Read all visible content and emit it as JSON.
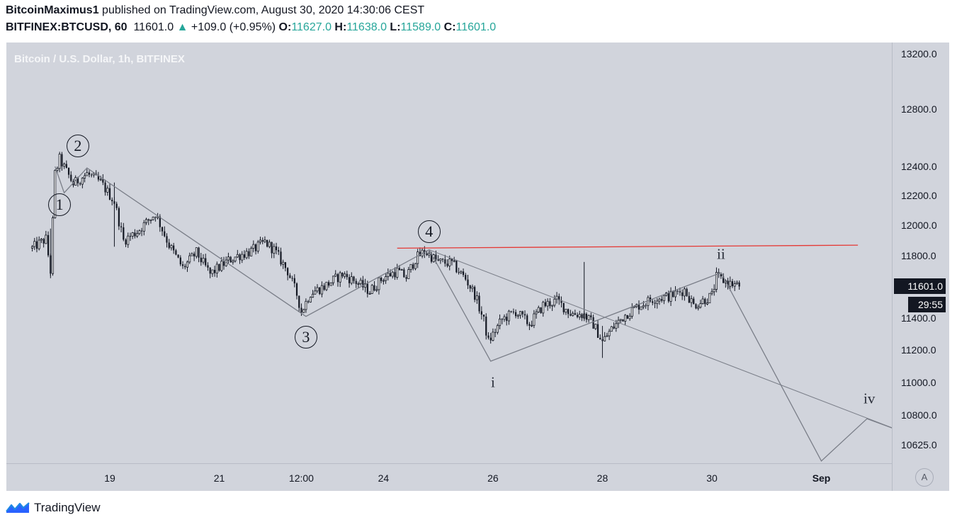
{
  "header": {
    "author": "BitcoinMaximus1",
    "published": "published on TradingView.com, August 30, 2020 14:30:06 CEST",
    "symbol": "BITFINEX:BTCUSD, 60",
    "last": "11601.0",
    "arrow": "▲",
    "change": "+109.0 (+0.95%)",
    "o_label": "O:",
    "o": "11627.0",
    "h_label": "H:",
    "h": "11638.0",
    "l_label": "L:",
    "l": "11589.0",
    "c_label": "C:",
    "c": "11601.0"
  },
  "price_tag": "11601.0",
  "countdown": "29:55",
  "auto_label": "A",
  "footer": {
    "brand": "TradingView",
    "logo_icon": "tradingview-logo-icon"
  },
  "colors": {
    "background": "#d1d4dc",
    "candle": "#131722",
    "resistance": "#e53935",
    "wave_line": "#7a7e88",
    "green": "#26a69a"
  },
  "labels": {
    "wave1": "1",
    "wave2": "2",
    "wave3": "3",
    "wave4": "4",
    "sub_i": "i",
    "sub_ii": "ii",
    "sub_iv": "iv"
  },
  "chart_data": {
    "type": "candlestick",
    "title": "Bitcoin / U.S. Dollar, 1h, BITFINEX",
    "interval": "1h",
    "x_tick_labels": [
      "19",
      "21",
      "12:00",
      "24",
      "26",
      "28",
      "30",
      "Sep"
    ],
    "y_tick_labels": [
      "13200.0",
      "12800.0",
      "12400.0",
      "12200.0",
      "12000.0",
      "11800.0",
      "11400.0",
      "11200.0",
      "11000.0",
      "10800.0",
      "10625.0"
    ],
    "y_scale": "log",
    "ylim": [
      10530,
      13300
    ],
    "grid": false,
    "last_price": 11601.0,
    "price_path": [
      {
        "t": "Aug 17 14:00",
        "v": 11850
      },
      {
        "t": "Aug 17 20:00",
        "v": 11910
      },
      {
        "t": "Aug 17 22:00",
        "v": 11700
      },
      {
        "t": "Aug 18 00:00",
        "v": 12350
      },
      {
        "t": "Aug 18 02:00",
        "v": 12450
      },
      {
        "t": "Aug 18 08:00",
        "v": 12280
      },
      {
        "t": "Aug 18 14:00",
        "v": 12350
      },
      {
        "t": "Aug 18 20:00",
        "v": 12290
      },
      {
        "t": "Aug 19 02:00",
        "v": 12160
      },
      {
        "t": "Aug 19 06:00",
        "v": 11900
      },
      {
        "t": "Aug 19 12:00",
        "v": 11960
      },
      {
        "t": "Aug 19 20:00",
        "v": 12080
      },
      {
        "t": "Aug 20 02:00",
        "v": 11870
      },
      {
        "t": "Aug 20 08:00",
        "v": 11720
      },
      {
        "t": "Aug 20 14:00",
        "v": 11820
      },
      {
        "t": "Aug 20 20:00",
        "v": 11680
      },
      {
        "t": "Aug 21 04:00",
        "v": 11770
      },
      {
        "t": "Aug 21 08:00",
        "v": 11800
      },
      {
        "t": "Aug 21 14:00",
        "v": 11830
      },
      {
        "t": "Aug 21 20:00",
        "v": 11890
      },
      {
        "t": "Aug 22 00:00",
        "v": 11840
      },
      {
        "t": "Aug 22 06:00",
        "v": 11700
      },
      {
        "t": "Aug 22 10:00",
        "v": 11550
      },
      {
        "t": "Aug 22 12:00",
        "v": 11440
      },
      {
        "t": "Aug 22 16:00",
        "v": 11560
      },
      {
        "t": "Aug 22 22:00",
        "v": 11600
      },
      {
        "t": "Aug 23 06:00",
        "v": 11680
      },
      {
        "t": "Aug 23 12:00",
        "v": 11630
      },
      {
        "t": "Aug 23 18:00",
        "v": 11570
      },
      {
        "t": "Aug 24 00:00",
        "v": 11660
      },
      {
        "t": "Aug 24 06:00",
        "v": 11700
      },
      {
        "t": "Aug 24 10:00",
        "v": 11660
      },
      {
        "t": "Aug 24 14:00",
        "v": 11780
      },
      {
        "t": "Aug 24 18:00",
        "v": 11830
      },
      {
        "t": "Aug 25 00:00",
        "v": 11760
      },
      {
        "t": "Aug 25 06:00",
        "v": 11750
      },
      {
        "t": "Aug 25 12:00",
        "v": 11650
      },
      {
        "t": "Aug 25 16:00",
        "v": 11550
      },
      {
        "t": "Aug 25 20:00",
        "v": 11380
      },
      {
        "t": "Aug 25 22:00",
        "v": 11250
      },
      {
        "t": "Aug 26 04:00",
        "v": 11390
      },
      {
        "t": "Aug 26 10:00",
        "v": 11440
      },
      {
        "t": "Aug 26 16:00",
        "v": 11360
      },
      {
        "t": "Aug 26 22:00",
        "v": 11480
      },
      {
        "t": "Aug 27 04:00",
        "v": 11510
      },
      {
        "t": "Aug 27 10:00",
        "v": 11430
      },
      {
        "t": "Aug 27 16:00",
        "v": 11420
      },
      {
        "t": "Aug 27 20:00",
        "v": 11360
      },
      {
        "t": "Aug 28 00:00",
        "v": 11250
      },
      {
        "t": "Aug 28 04:00",
        "v": 11330
      },
      {
        "t": "Aug 28 10:00",
        "v": 11420
      },
      {
        "t": "Aug 28 16:00",
        "v": 11480
      },
      {
        "t": "Aug 28 22:00",
        "v": 11520
      },
      {
        "t": "Aug 29 06:00",
        "v": 11540
      },
      {
        "t": "Aug 29 12:00",
        "v": 11580
      },
      {
        "t": "Aug 29 16:00",
        "v": 11480
      },
      {
        "t": "Aug 29 20:00",
        "v": 11510
      },
      {
        "t": "Aug 30 00:00",
        "v": 11540
      },
      {
        "t": "Aug 30 02:00",
        "v": 11660
      },
      {
        "t": "Aug 30 08:00",
        "v": 11620
      },
      {
        "t": "Aug 30 12:00",
        "v": 11601
      }
    ],
    "spikes": [
      {
        "t": "Aug 17 22:00",
        "high": 11980,
        "low": 11670
      },
      {
        "t": "Aug 19 02:00",
        "high": 12290,
        "low": 11860
      },
      {
        "t": "Aug 27 16:00",
        "high": 11760,
        "low": 11380
      },
      {
        "t": "Aug 28 00:00",
        "high": 11350,
        "low": 11150
      }
    ],
    "annotations": {
      "resistance_line": [
        {
          "t": "Aug 24 06:00",
          "v": 11850
        },
        {
          "t": "Sep 1 16:00",
          "v": 11870
        }
      ],
      "wave_path": [
        {
          "t": "Aug 18 00:00",
          "v": 12400
        },
        {
          "t": "Aug 18 04:00",
          "v": 12220
        },
        {
          "t": "Aug 18 14:00",
          "v": 12390
        },
        {
          "t": "Aug 22 14:00",
          "v": 11410
        },
        {
          "t": "Aug 24 20:00",
          "v": 11840
        },
        {
          "t": "Aug 25 23:00",
          "v": 11130
        },
        {
          "t": "Aug 30 04:00",
          "v": 11690
        },
        {
          "t": "Sep 1 00:00",
          "v": 10530
        },
        {
          "t": "Sep 1 20:00",
          "v": 10780
        },
        {
          "t": "Sep 2 12:00",
          "v": 10700
        }
      ],
      "channel_line": [
        {
          "t": "Aug 24 20:00",
          "v": 11840
        },
        {
          "t": "Sep 2 12:00",
          "v": 10700
        }
      ],
      "wave_labels": [
        {
          "label": "1",
          "t": "Aug 18 02:00",
          "v": 12140,
          "circled": true
        },
        {
          "label": "2",
          "t": "Aug 18 10:00",
          "v": 12540,
          "circled": true
        },
        {
          "label": "3",
          "t": "Aug 22 14:00",
          "v": 11280,
          "circled": true
        },
        {
          "label": "4",
          "t": "Aug 24 20:00",
          "v": 11960,
          "circled": true
        },
        {
          "label": "i",
          "t": "Aug 26 00:00",
          "v": 11000,
          "circled": false
        },
        {
          "label": "ii",
          "t": "Aug 30 04:00",
          "v": 11810,
          "circled": false
        },
        {
          "label": "iv",
          "t": "Sep 1 21:00",
          "v": 10900,
          "circled": false
        }
      ]
    }
  }
}
